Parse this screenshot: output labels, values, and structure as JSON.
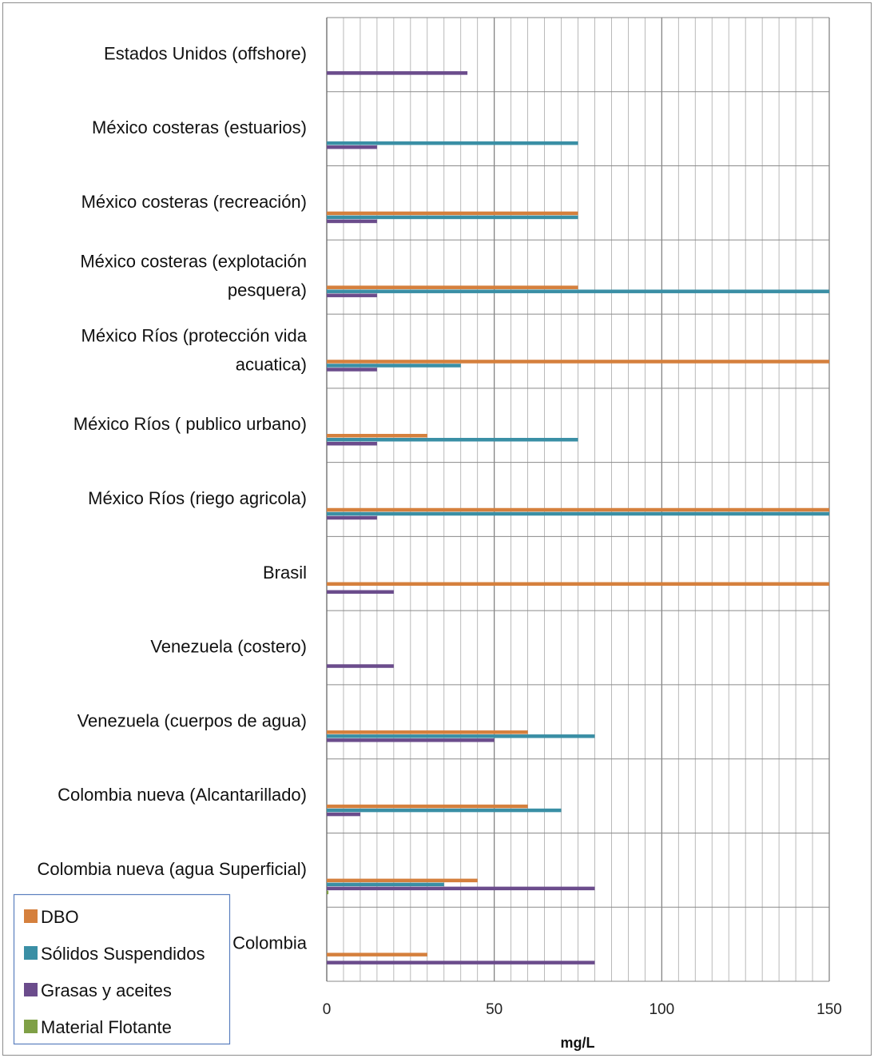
{
  "chart_data": {
    "type": "bar",
    "orientation": "horizontal",
    "categories": [
      [
        "Estados Unidos (offshore)"
      ],
      [
        "México costeras (estuarios)"
      ],
      [
        "México costeras (recreación)"
      ],
      [
        "México costeras (explotación",
        "pesquera)"
      ],
      [
        "México Ríos (protección vida",
        "acuatica)"
      ],
      [
        "México Ríos ( publico urbano)"
      ],
      [
        "México Ríos (riego agricola)"
      ],
      [
        "Brasil"
      ],
      [
        "Venezuela (costero)"
      ],
      [
        "Venezuela (cuerpos de agua)"
      ],
      [
        "Colombia nueva (Alcantarillado)"
      ],
      [
        "Colombia nueva (agua Superficial)"
      ],
      [
        "Colombia"
      ]
    ],
    "series": [
      {
        "name": "DBO",
        "color": "#D5803D",
        "values": [
          null,
          null,
          75,
          75,
          150,
          30,
          150,
          150,
          null,
          60,
          60,
          45,
          30
        ]
      },
      {
        "name": "Sólidos Suspendidos",
        "color": "#3A8FA5",
        "values": [
          null,
          75,
          75,
          150,
          40,
          75,
          150,
          null,
          null,
          80,
          70,
          35,
          null
        ]
      },
      {
        "name": "Grasas y aceites",
        "color": "#6B4C8C",
        "values": [
          42,
          15,
          15,
          15,
          15,
          15,
          15,
          20,
          20,
          50,
          10,
          80,
          80
        ]
      },
      {
        "name": "Material Flotante",
        "color": "#7FA046",
        "values": [
          null,
          null,
          null,
          null,
          null,
          null,
          null,
          null,
          null,
          null,
          null,
          0.5,
          null
        ]
      }
    ],
    "xlabel": "mg/L",
    "xlim": [
      0,
      150
    ],
    "major_ticks": [
      0,
      50,
      100,
      150
    ],
    "minor_tick_step": 5,
    "grid": true,
    "legend_position": "bottom-left"
  }
}
